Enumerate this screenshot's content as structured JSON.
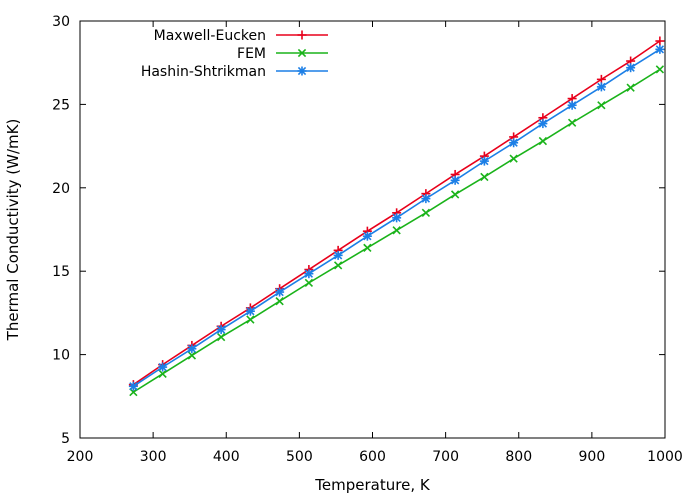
{
  "chart_data": {
    "type": "line",
    "xlabel": "Temperature, K",
    "ylabel": "Thermal Conductivity (W/mK)",
    "xlim": [
      200,
      1000
    ],
    "ylim": [
      5,
      30
    ],
    "xticks": [
      200,
      300,
      400,
      500,
      600,
      700,
      800,
      900,
      1000
    ],
    "yticks": [
      5,
      10,
      15,
      20,
      25,
      30
    ],
    "grid": false,
    "legend_position": "top-left",
    "x": [
      273,
      313,
      353,
      393,
      433,
      473,
      513,
      553,
      593,
      633,
      673,
      713,
      753,
      793,
      833,
      873,
      913,
      953,
      993
    ],
    "series": [
      {
        "name": "Maxwell-Eucken",
        "color": "#e8001b",
        "marker": "plus",
        "values": [
          8.2,
          9.4,
          10.55,
          11.7,
          12.8,
          13.95,
          15.1,
          16.25,
          17.4,
          18.5,
          19.65,
          20.8,
          21.9,
          23.05,
          24.2,
          25.35,
          26.5,
          27.6,
          28.8
        ]
      },
      {
        "name": "FEM",
        "color": "#1ab31a",
        "marker": "cross",
        "values": [
          7.75,
          8.85,
          9.95,
          11.05,
          12.1,
          13.2,
          14.3,
          15.35,
          16.4,
          17.45,
          18.5,
          19.6,
          20.65,
          21.75,
          22.8,
          23.9,
          24.95,
          26.0,
          27.1
        ]
      },
      {
        "name": "Hashin-Shtrikman",
        "color": "#1c7fe6",
        "marker": "star",
        "values": [
          8.1,
          9.25,
          10.35,
          11.5,
          12.6,
          13.75,
          14.85,
          15.95,
          17.1,
          18.2,
          19.35,
          20.45,
          21.6,
          22.7,
          23.85,
          24.95,
          26.05,
          27.2,
          28.3
        ]
      }
    ]
  }
}
